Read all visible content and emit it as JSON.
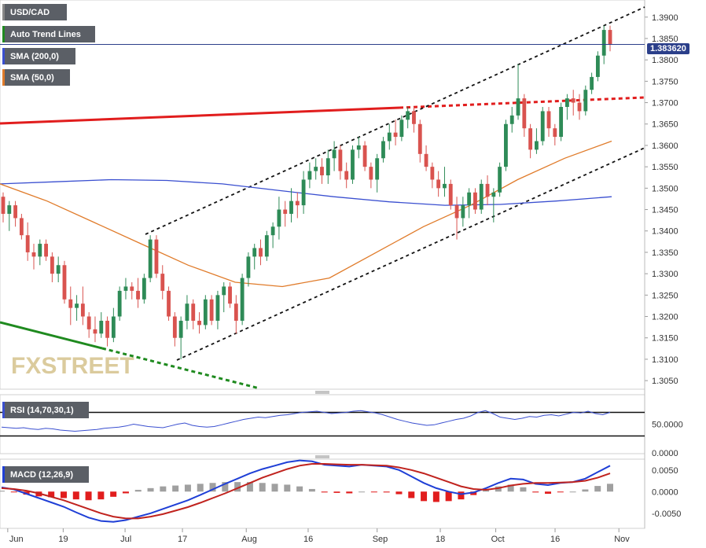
{
  "legend": {
    "symbol": "USD/CAD",
    "trend": "Auto Trend Lines",
    "sma200": "SMA (200,0)",
    "sma50": "SMA (50,0)",
    "rsi": "RSI (14,70,30,1)",
    "macd": "MACD (12,26,9)"
  },
  "watermark": "FXSTREET",
  "current_price": "1.383620",
  "colors": {
    "up": "#2e8b57",
    "down": "#d9534f",
    "sma200": "#3a4fd0",
    "sma50": "#e07b2a",
    "trend_solid_red": "#e11d1d",
    "trend_green": "#1f8a1f",
    "rsi": "#3a4fd0",
    "macd": "#1f3fd6",
    "signal": "#c0231e",
    "hist_pos": "#a0a0a0",
    "hist_neg": "#e11d1d"
  },
  "chart_data": [
    {
      "type": "candlestick",
      "title": "USD/CAD",
      "y_ticks": [
        "1.3900",
        "1.3850",
        "1.3800",
        "1.3750",
        "1.3700",
        "1.3650",
        "1.3600",
        "1.3550",
        "1.3500",
        "1.3450",
        "1.3400",
        "1.3350",
        "1.3300",
        "1.3250",
        "1.3200",
        "1.3150",
        "1.3100",
        "1.3050"
      ],
      "x_ticks": [
        "Jun",
        "19",
        "Jul",
        "17",
        "Aug",
        "16",
        "Sep",
        "18",
        "Oct",
        "16",
        "Nov"
      ],
      "ylim": [
        1.303,
        1.394
      ],
      "ohlc": [
        [
          1.348,
          1.349,
          1.342,
          1.344
        ],
        [
          1.344,
          1.347,
          1.34,
          1.346
        ],
        [
          1.346,
          1.347,
          1.341,
          1.343
        ],
        [
          1.343,
          1.344,
          1.338,
          1.339
        ],
        [
          1.339,
          1.342,
          1.333,
          1.335
        ],
        [
          1.335,
          1.337,
          1.331,
          1.334
        ],
        [
          1.334,
          1.338,
          1.332,
          1.337
        ],
        [
          1.337,
          1.338,
          1.333,
          1.334
        ],
        [
          1.334,
          1.335,
          1.328,
          1.33
        ],
        [
          1.33,
          1.334,
          1.328,
          1.332
        ],
        [
          1.332,
          1.333,
          1.323,
          1.324
        ],
        [
          1.324,
          1.327,
          1.318,
          1.322
        ],
        [
          1.322,
          1.325,
          1.319,
          1.323
        ],
        [
          1.323,
          1.327,
          1.318,
          1.32
        ],
        [
          1.32,
          1.321,
          1.315,
          1.317
        ],
        [
          1.317,
          1.32,
          1.314,
          1.316
        ],
        [
          1.316,
          1.321,
          1.315,
          1.319
        ],
        [
          1.319,
          1.32,
          1.313,
          1.315
        ],
        [
          1.315,
          1.322,
          1.314,
          1.32
        ],
        [
          1.32,
          1.327,
          1.319,
          1.326
        ],
        [
          1.326,
          1.329,
          1.324,
          1.327
        ],
        [
          1.327,
          1.328,
          1.324,
          1.326
        ],
        [
          1.326,
          1.329,
          1.322,
          1.324
        ],
        [
          1.324,
          1.33,
          1.323,
          1.329
        ],
        [
          1.329,
          1.339,
          1.328,
          1.338
        ],
        [
          1.338,
          1.339,
          1.329,
          1.33
        ],
        [
          1.33,
          1.332,
          1.324,
          1.326
        ],
        [
          1.326,
          1.327,
          1.319,
          1.32
        ],
        [
          1.32,
          1.321,
          1.313,
          1.315
        ],
        [
          1.315,
          1.32,
          1.31,
          1.319
        ],
        [
          1.319,
          1.325,
          1.317,
          1.323
        ],
        [
          1.323,
          1.324,
          1.317,
          1.319
        ],
        [
          1.319,
          1.321,
          1.316,
          1.318
        ],
        [
          1.318,
          1.325,
          1.317,
          1.324
        ],
        [
          1.324,
          1.325,
          1.318,
          1.319
        ],
        [
          1.319,
          1.326,
          1.317,
          1.325
        ],
        [
          1.325,
          1.328,
          1.321,
          1.327
        ],
        [
          1.327,
          1.328,
          1.322,
          1.323
        ],
        [
          1.323,
          1.325,
          1.316,
          1.319
        ],
        [
          1.319,
          1.33,
          1.318,
          1.329
        ],
        [
          1.329,
          1.335,
          1.327,
          1.334
        ],
        [
          1.334,
          1.337,
          1.331,
          1.336
        ],
        [
          1.336,
          1.338,
          1.332,
          1.334
        ],
        [
          1.334,
          1.34,
          1.333,
          1.339
        ],
        [
          1.339,
          1.342,
          1.336,
          1.341
        ],
        [
          1.341,
          1.348,
          1.338,
          1.345
        ],
        [
          1.345,
          1.347,
          1.341,
          1.344
        ],
        [
          1.344,
          1.35,
          1.342,
          1.347
        ],
        [
          1.347,
          1.349,
          1.343,
          1.346
        ],
        [
          1.346,
          1.354,
          1.344,
          1.352
        ],
        [
          1.352,
          1.356,
          1.35,
          1.354
        ],
        [
          1.354,
          1.357,
          1.352,
          1.355
        ],
        [
          1.355,
          1.357,
          1.351,
          1.353
        ],
        [
          1.353,
          1.359,
          1.351,
          1.357
        ],
        [
          1.357,
          1.361,
          1.354,
          1.359
        ],
        [
          1.359,
          1.36,
          1.352,
          1.354
        ],
        [
          1.354,
          1.356,
          1.35,
          1.352
        ],
        [
          1.352,
          1.36,
          1.351,
          1.359
        ],
        [
          1.359,
          1.362,
          1.357,
          1.36
        ],
        [
          1.36,
          1.361,
          1.354,
          1.355
        ],
        [
          1.355,
          1.356,
          1.35,
          1.352
        ],
        [
          1.352,
          1.358,
          1.349,
          1.357
        ],
        [
          1.357,
          1.362,
          1.356,
          1.361
        ],
        [
          1.361,
          1.365,
          1.359,
          1.363
        ],
        [
          1.363,
          1.366,
          1.36,
          1.362
        ],
        [
          1.362,
          1.367,
          1.361,
          1.366
        ],
        [
          1.366,
          1.369,
          1.364,
          1.368
        ],
        [
          1.368,
          1.369,
          1.363,
          1.365
        ],
        [
          1.365,
          1.366,
          1.356,
          1.358
        ],
        [
          1.358,
          1.36,
          1.354,
          1.355
        ],
        [
          1.355,
          1.356,
          1.35,
          1.352
        ],
        [
          1.352,
          1.354,
          1.348,
          1.35
        ],
        [
          1.35,
          1.355,
          1.348,
          1.351
        ],
        [
          1.351,
          1.352,
          1.345,
          1.346
        ],
        [
          1.346,
          1.348,
          1.338,
          1.343
        ],
        [
          1.343,
          1.348,
          1.341,
          1.346
        ],
        [
          1.346,
          1.35,
          1.343,
          1.349
        ],
        [
          1.349,
          1.35,
          1.344,
          1.345
        ],
        [
          1.345,
          1.352,
          1.344,
          1.351
        ],
        [
          1.351,
          1.353,
          1.346,
          1.348
        ],
        [
          1.348,
          1.35,
          1.342,
          1.349
        ],
        [
          1.349,
          1.356,
          1.348,
          1.355
        ],
        [
          1.355,
          1.366,
          1.354,
          1.365
        ],
        [
          1.365,
          1.369,
          1.363,
          1.367
        ],
        [
          1.367,
          1.379,
          1.366,
          1.371
        ],
        [
          1.371,
          1.372,
          1.362,
          1.364
        ],
        [
          1.364,
          1.365,
          1.357,
          1.359
        ],
        [
          1.359,
          1.364,
          1.358,
          1.361
        ],
        [
          1.361,
          1.369,
          1.36,
          1.368
        ],
        [
          1.368,
          1.369,
          1.362,
          1.364
        ],
        [
          1.364,
          1.365,
          1.36,
          1.362
        ],
        [
          1.362,
          1.37,
          1.361,
          1.369
        ],
        [
          1.369,
          1.372,
          1.366,
          1.371
        ],
        [
          1.371,
          1.373,
          1.367,
          1.37
        ],
        [
          1.37,
          1.372,
          1.366,
          1.368
        ],
        [
          1.368,
          1.374,
          1.367,
          1.373
        ],
        [
          1.373,
          1.377,
          1.372,
          1.376
        ],
        [
          1.376,
          1.382,
          1.375,
          1.381
        ],
        [
          1.381,
          1.388,
          1.379,
          1.387
        ],
        [
          1.387,
          1.388,
          1.382,
          1.3836
        ]
      ],
      "sma200": [
        1.351,
        1.3515,
        1.352,
        1.3518,
        1.351,
        1.3495,
        1.348,
        1.3468,
        1.346,
        1.3462,
        1.347,
        1.348
      ],
      "sma50": [
        1.351,
        1.347,
        1.342,
        1.337,
        1.332,
        1.328,
        1.327,
        1.329,
        1.335,
        1.341,
        1.346,
        1.352,
        1.357,
        1.361
      ],
      "rsi_levels": [
        "50.0000",
        "0.0000"
      ],
      "macd_ticks": [
        "0.0050",
        "0.0000",
        "-0.0050"
      ]
    }
  ]
}
